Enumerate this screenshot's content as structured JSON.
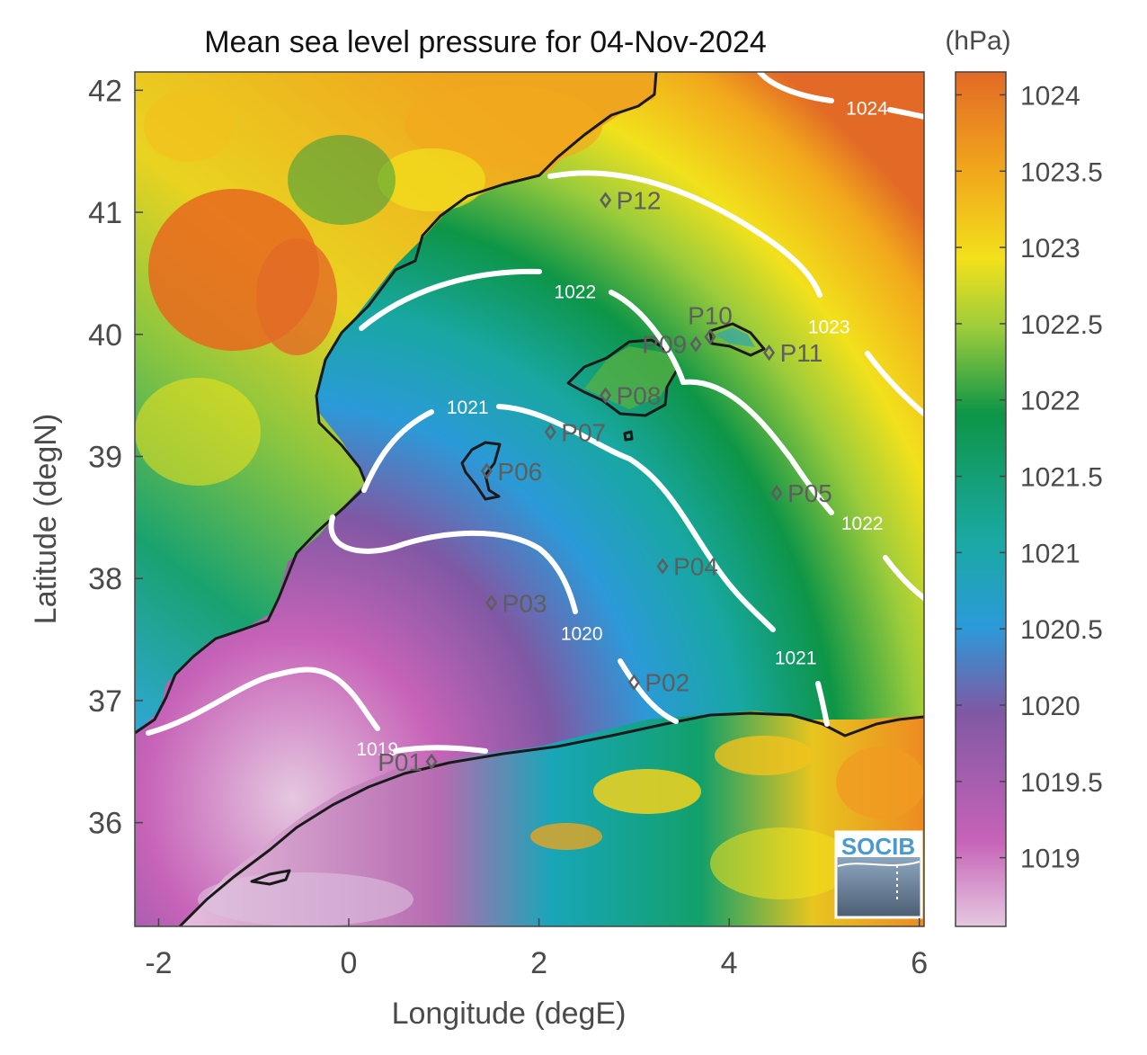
{
  "figure": {
    "title": "Mean sea level pressure for 04-Nov-2024",
    "xlabel": "Longitude (degE)",
    "ylabel": "Latitude (degN)",
    "units": "(hPa)",
    "logo_text": "SOCIB"
  },
  "map": {
    "lon_range": [
      -2.25,
      6.05
    ],
    "lat_range": [
      35.15,
      42.15
    ],
    "x_ticks": [
      -2,
      0,
      2,
      4,
      6
    ],
    "y_ticks": [
      36,
      37,
      38,
      39,
      40,
      41,
      42
    ],
    "x_tick_labels": [
      "-2",
      "0",
      "2",
      "4",
      "6"
    ],
    "y_tick_labels": [
      "36",
      "37",
      "38",
      "39",
      "40",
      "41",
      "42"
    ]
  },
  "colorbar": {
    "range": [
      1018.55,
      1024.15
    ],
    "ticks": [
      1019,
      1019.5,
      1020,
      1020.5,
      1021,
      1021.5,
      1022,
      1022.5,
      1023,
      1023.5,
      1024
    ],
    "tick_labels": [
      "1019",
      "1019.5",
      "1020",
      "1020.5",
      "1021",
      "1021.5",
      "1022",
      "1022.5",
      "1023",
      "1023.5",
      "1024"
    ],
    "colors": [
      "#e5c8e0",
      "#c763b8",
      "#8058a4",
      "#2b9ad8",
      "#1aa9a4",
      "#0d9547",
      "#9ccc3b",
      "#f2e11c",
      "#f2a91c",
      "#e26a26"
    ]
  },
  "contours": [
    {
      "label": "1019",
      "value": 1019,
      "label_at": [
        0.3,
        36.6
      ]
    },
    {
      "label": "1020",
      "value": 1020,
      "label_at": [
        2.45,
        37.55
      ]
    },
    {
      "label": "1021",
      "value": 1021,
      "label_at": [
        1.25,
        39.4
      ]
    },
    {
      "label": "1021",
      "value": 1021,
      "label_at": [
        4.7,
        37.35
      ]
    },
    {
      "label": "1022",
      "value": 1022,
      "label_at": [
        2.38,
        40.35
      ]
    },
    {
      "label": "1022",
      "value": 1022,
      "label_at": [
        5.4,
        38.45
      ]
    },
    {
      "label": "1023",
      "value": 1023,
      "label_at": [
        5.05,
        40.06
      ]
    },
    {
      "label": "1024",
      "value": 1024,
      "label_at": [
        5.45,
        41.85
      ]
    }
  ],
  "points": [
    {
      "id": "P01",
      "lon": 0.87,
      "lat": 36.5,
      "side": "left"
    },
    {
      "id": "P02",
      "lon": 3.0,
      "lat": 37.15,
      "side": "right"
    },
    {
      "id": "P03",
      "lon": 1.5,
      "lat": 37.8,
      "side": "right"
    },
    {
      "id": "P04",
      "lon": 3.3,
      "lat": 38.1,
      "side": "right"
    },
    {
      "id": "P05",
      "lon": 4.5,
      "lat": 38.7,
      "side": "right"
    },
    {
      "id": "P06",
      "lon": 1.45,
      "lat": 38.88,
      "side": "right"
    },
    {
      "id": "P07",
      "lon": 2.12,
      "lat": 39.2,
      "side": "right"
    },
    {
      "id": "P08",
      "lon": 2.7,
      "lat": 39.5,
      "side": "right"
    },
    {
      "id": "P09",
      "lon": 3.65,
      "lat": 39.92,
      "side": "left"
    },
    {
      "id": "P10",
      "lon": 3.8,
      "lat": 39.98,
      "side": "above"
    },
    {
      "id": "P11",
      "lon": 4.42,
      "lat": 39.85,
      "side": "right"
    },
    {
      "id": "P12",
      "lon": 2.7,
      "lat": 41.1,
      "side": "right"
    }
  ]
}
